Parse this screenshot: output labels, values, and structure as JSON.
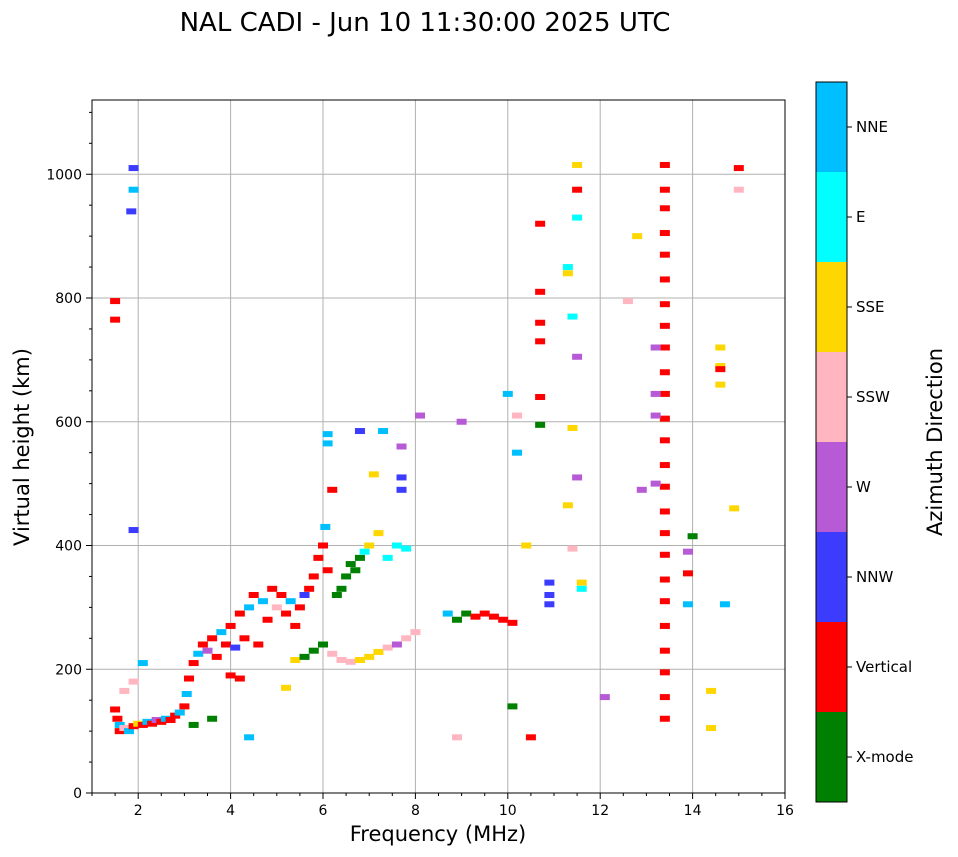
{
  "chart_data": {
    "type": "scatter",
    "title": "NAL CADI - Jun 10 11:30:00 2025 UTC",
    "xlabel": "Frequency (MHz)",
    "ylabel": "Virtual height (km)",
    "xlim": [
      1,
      16
    ],
    "ylim": [
      0,
      1120
    ],
    "xticks": [
      2,
      4,
      6,
      8,
      10,
      12,
      14,
      16
    ],
    "yticks": [
      0,
      200,
      400,
      600,
      800,
      1000
    ],
    "grid": true,
    "colorbar": {
      "title": "Azimuth Direction",
      "categories": [
        {
          "label": "X-mode",
          "color": "#008000"
        },
        {
          "label": "Vertical",
          "color": "#ff0000"
        },
        {
          "label": "NNW",
          "color": "#3c3cff"
        },
        {
          "label": "W",
          "color": "#b65ad6"
        },
        {
          "label": "SSW",
          "color": "#ffb6c1"
        },
        {
          "label": "SSE",
          "color": "#ffd700"
        },
        {
          "label": "E",
          "color": "#00ffff"
        },
        {
          "label": "NNE",
          "color": "#00bfff"
        }
      ]
    },
    "points": [
      [
        1.5,
        135,
        "Vertical"
      ],
      [
        1.55,
        120,
        "Vertical"
      ],
      [
        1.6,
        110,
        "NNE"
      ],
      [
        1.6,
        100,
        "Vertical"
      ],
      [
        1.7,
        105,
        "SSW"
      ],
      [
        1.8,
        100,
        "NNE"
      ],
      [
        1.9,
        108,
        "Vertical"
      ],
      [
        2.0,
        112,
        "SSE"
      ],
      [
        2.1,
        110,
        "Vertical"
      ],
      [
        2.2,
        115,
        "NNE"
      ],
      [
        2.3,
        112,
        "Vertical"
      ],
      [
        2.4,
        118,
        "W"
      ],
      [
        2.5,
        115,
        "Vertical"
      ],
      [
        2.6,
        120,
        "NNE"
      ],
      [
        2.7,
        118,
        "Vertical"
      ],
      [
        2.8,
        125,
        "Vertical"
      ],
      [
        2.9,
        130,
        "NNE"
      ],
      [
        3.0,
        140,
        "Vertical"
      ],
      [
        3.05,
        160,
        "NNE"
      ],
      [
        3.1,
        185,
        "Vertical"
      ],
      [
        3.2,
        210,
        "Vertical"
      ],
      [
        3.3,
        225,
        "NNE"
      ],
      [
        3.4,
        240,
        "Vertical"
      ],
      [
        3.5,
        230,
        "W"
      ],
      [
        3.6,
        250,
        "Vertical"
      ],
      [
        3.7,
        220,
        "Vertical"
      ],
      [
        3.8,
        260,
        "NNE"
      ],
      [
        3.9,
        240,
        "Vertical"
      ],
      [
        4.0,
        270,
        "Vertical"
      ],
      [
        4.1,
        235,
        "NNW"
      ],
      [
        4.2,
        290,
        "Vertical"
      ],
      [
        4.3,
        250,
        "Vertical"
      ],
      [
        4.4,
        300,
        "NNE"
      ],
      [
        4.5,
        320,
        "Vertical"
      ],
      [
        4.6,
        240,
        "Vertical"
      ],
      [
        4.7,
        310,
        "NNE"
      ],
      [
        4.8,
        280,
        "Vertical"
      ],
      [
        4.9,
        330,
        "Vertical"
      ],
      [
        5.0,
        300,
        "SSW"
      ],
      [
        5.1,
        320,
        "Vertical"
      ],
      [
        5.2,
        290,
        "Vertical"
      ],
      [
        5.3,
        310,
        "NNE"
      ],
      [
        5.4,
        270,
        "Vertical"
      ],
      [
        5.5,
        300,
        "Vertical"
      ],
      [
        5.6,
        320,
        "NNW"
      ],
      [
        5.7,
        330,
        "Vertical"
      ],
      [
        5.8,
        350,
        "Vertical"
      ],
      [
        5.9,
        380,
        "Vertical"
      ],
      [
        6.0,
        400,
        "Vertical"
      ],
      [
        6.05,
        430,
        "NNE"
      ],
      [
        6.1,
        360,
        "Vertical"
      ],
      [
        6.2,
        490,
        "Vertical"
      ],
      [
        6.3,
        320,
        "X-mode"
      ],
      [
        6.4,
        330,
        "X-mode"
      ],
      [
        6.5,
        350,
        "X-mode"
      ],
      [
        6.6,
        370,
        "X-mode"
      ],
      [
        6.7,
        360,
        "X-mode"
      ],
      [
        6.8,
        380,
        "X-mode"
      ],
      [
        6.9,
        390,
        "E"
      ],
      [
        7.0,
        400,
        "SSE"
      ],
      [
        7.2,
        420,
        "SSE"
      ],
      [
        7.4,
        380,
        "E"
      ],
      [
        7.6,
        400,
        "E"
      ],
      [
        7.8,
        395,
        "E"
      ],
      [
        6.0,
        240,
        "X-mode"
      ],
      [
        6.2,
        225,
        "SSW"
      ],
      [
        6.4,
        215,
        "SSW"
      ],
      [
        6.6,
        212,
        "SSW"
      ],
      [
        6.8,
        215,
        "SSE"
      ],
      [
        7.0,
        220,
        "SSE"
      ],
      [
        7.2,
        228,
        "SSE"
      ],
      [
        7.4,
        235,
        "SSW"
      ],
      [
        7.6,
        240,
        "W"
      ],
      [
        7.8,
        250,
        "SSW"
      ],
      [
        8.0,
        260,
        "SSW"
      ],
      [
        5.4,
        215,
        "SSE"
      ],
      [
        5.6,
        220,
        "X-mode"
      ],
      [
        5.8,
        230,
        "X-mode"
      ],
      [
        4.0,
        190,
        "Vertical"
      ],
      [
        4.2,
        185,
        "Vertical"
      ],
      [
        8.7,
        290,
        "NNE"
      ],
      [
        8.9,
        280,
        "X-mode"
      ],
      [
        9.1,
        290,
        "X-mode"
      ],
      [
        9.3,
        285,
        "Vertical"
      ],
      [
        9.5,
        290,
        "Vertical"
      ],
      [
        9.7,
        285,
        "Vertical"
      ],
      [
        9.9,
        280,
        "Vertical"
      ],
      [
        10.1,
        275,
        "Vertical"
      ],
      [
        10.7,
        920,
        "Vertical"
      ],
      [
        10.7,
        810,
        "Vertical"
      ],
      [
        10.7,
        760,
        "Vertical"
      ],
      [
        10.7,
        730,
        "Vertical"
      ],
      [
        10.7,
        640,
        "Vertical"
      ],
      [
        10.7,
        595,
        "X-mode"
      ],
      [
        13.4,
        1015,
        "Vertical"
      ],
      [
        13.4,
        975,
        "Vertical"
      ],
      [
        13.4,
        945,
        "Vertical"
      ],
      [
        13.4,
        905,
        "Vertical"
      ],
      [
        13.4,
        870,
        "Vertical"
      ],
      [
        13.4,
        830,
        "Vertical"
      ],
      [
        13.4,
        790,
        "Vertical"
      ],
      [
        13.4,
        755,
        "Vertical"
      ],
      [
        13.4,
        720,
        "Vertical"
      ],
      [
        13.4,
        680,
        "Vertical"
      ],
      [
        13.4,
        645,
        "Vertical"
      ],
      [
        13.4,
        605,
        "Vertical"
      ],
      [
        13.4,
        570,
        "Vertical"
      ],
      [
        13.4,
        530,
        "Vertical"
      ],
      [
        13.4,
        495,
        "Vertical"
      ],
      [
        13.4,
        455,
        "Vertical"
      ],
      [
        13.4,
        420,
        "Vertical"
      ],
      [
        13.4,
        385,
        "Vertical"
      ],
      [
        13.4,
        345,
        "Vertical"
      ],
      [
        13.4,
        310,
        "Vertical"
      ],
      [
        13.4,
        270,
        "Vertical"
      ],
      [
        13.4,
        230,
        "Vertical"
      ],
      [
        13.4,
        195,
        "Vertical"
      ],
      [
        13.4,
        155,
        "Vertical"
      ],
      [
        13.4,
        120,
        "Vertical"
      ],
      [
        13.2,
        720,
        "W"
      ],
      [
        13.2,
        645,
        "W"
      ],
      [
        13.2,
        610,
        "W"
      ],
      [
        13.2,
        500,
        "W"
      ],
      [
        15.0,
        975,
        "SSW"
      ],
      [
        15.0,
        1010,
        "Vertical"
      ],
      [
        14.6,
        720,
        "SSE"
      ],
      [
        14.6,
        690,
        "SSE"
      ],
      [
        14.6,
        685,
        "Vertical"
      ],
      [
        14.6,
        660,
        "SSE"
      ],
      [
        14.4,
        165,
        "SSE"
      ],
      [
        14.4,
        105,
        "SSE"
      ],
      [
        14.0,
        415,
        "X-mode"
      ],
      [
        13.9,
        390,
        "W"
      ],
      [
        13.9,
        355,
        "Vertical"
      ],
      [
        13.9,
        305,
        "NNE"
      ],
      [
        14.7,
        305,
        "NNE"
      ],
      [
        14.9,
        460,
        "SSE"
      ],
      [
        11.3,
        850,
        "E"
      ],
      [
        11.3,
        840,
        "SSE"
      ],
      [
        11.4,
        770,
        "E"
      ],
      [
        11.5,
        930,
        "E"
      ],
      [
        11.5,
        975,
        "Vertical"
      ],
      [
        11.5,
        1015,
        "SSE"
      ],
      [
        11.6,
        340,
        "SSE"
      ],
      [
        11.6,
        330,
        "E"
      ],
      [
        11.5,
        705,
        "W"
      ],
      [
        11.4,
        590,
        "SSE"
      ],
      [
        11.5,
        510,
        "W"
      ],
      [
        11.3,
        465,
        "SSE"
      ],
      [
        11.4,
        395,
        "SSW"
      ],
      [
        10.2,
        550,
        "NNE"
      ],
      [
        10.4,
        400,
        "SSE"
      ],
      [
        10.9,
        340,
        "NNW"
      ],
      [
        10.9,
        320,
        "NNW"
      ],
      [
        10.9,
        305,
        "NNW"
      ],
      [
        12.8,
        900,
        "SSE"
      ],
      [
        12.6,
        795,
        "SSW"
      ],
      [
        12.9,
        490,
        "W"
      ],
      [
        12.1,
        155,
        "W"
      ],
      [
        10.5,
        90,
        "Vertical"
      ],
      [
        10.1,
        140,
        "X-mode"
      ],
      [
        8.9,
        90,
        "SSW"
      ],
      [
        8.1,
        610,
        "W"
      ],
      [
        9.0,
        600,
        "W"
      ],
      [
        10.0,
        645,
        "NNE"
      ],
      [
        10.2,
        610,
        "SSW"
      ],
      [
        7.7,
        560,
        "W"
      ],
      [
        7.7,
        510,
        "NNW"
      ],
      [
        7.7,
        490,
        "NNW"
      ],
      [
        6.1,
        580,
        "NNE"
      ],
      [
        6.1,
        565,
        "NNE"
      ],
      [
        6.8,
        585,
        "NNW"
      ],
      [
        7.3,
        585,
        "NNE"
      ],
      [
        7.1,
        515,
        "SSE"
      ],
      [
        1.5,
        795,
        "Vertical"
      ],
      [
        1.5,
        765,
        "Vertical"
      ],
      [
        1.9,
        1010,
        "NNW"
      ],
      [
        1.9,
        975,
        "NNE"
      ],
      [
        1.85,
        940,
        "NNW"
      ],
      [
        1.9,
        425,
        "NNW"
      ],
      [
        2.1,
        210,
        "NNE"
      ],
      [
        1.7,
        165,
        "SSW"
      ],
      [
        1.9,
        180,
        "SSW"
      ],
      [
        4.4,
        90,
        "NNE"
      ],
      [
        5.2,
        170,
        "SSE"
      ],
      [
        3.6,
        120,
        "X-mode"
      ],
      [
        3.2,
        110,
        "X-mode"
      ]
    ]
  }
}
